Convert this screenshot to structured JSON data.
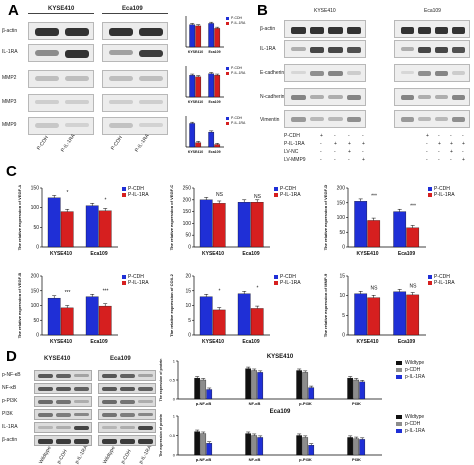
{
  "panels": {
    "A": {
      "label": "A",
      "cell_lines": [
        "KYSE410",
        "Eca109"
      ],
      "proteins": [
        "β-actin",
        "IL-1RA",
        "MMP2",
        "MMP3",
        "MMP9"
      ],
      "lanes": [
        "P-CDH",
        "P-IL-1RA"
      ],
      "band_intensity": {
        "KYSE410": [
          [
            0.9,
            0.9
          ],
          [
            0.45,
            0.9
          ],
          [
            0.2,
            0.2
          ],
          [
            0.12,
            0.12
          ],
          [
            0.15,
            0.1
          ]
        ],
        "Eca109": [
          [
            0.9,
            0.9
          ],
          [
            0.35,
            0.85
          ],
          [
            0.2,
            0.2
          ],
          [
            0.12,
            0.12
          ],
          [
            0.18,
            0.1
          ]
        ]
      }
    },
    "B": {
      "label": "B",
      "cell_lines": [
        "KYSE410",
        "Eca109"
      ],
      "proteins": [
        "β-actin",
        "IL-1RA",
        "E-cadherin",
        "N-cadherin",
        "Vimentin"
      ],
      "conditions": [
        "P-CDH",
        "P-IL-1RA",
        "LV-NC",
        "LV-MMP9"
      ],
      "lane_marks": [
        [
          "+",
          "-",
          "-",
          "-"
        ],
        [
          "-",
          "+",
          "+",
          "+"
        ],
        [
          "-",
          "-",
          "+",
          "-"
        ],
        [
          "-",
          "-",
          "-",
          "+"
        ]
      ]
    },
    "C": {
      "label": "C",
      "legend": [
        "P-CDH",
        "P-IL-1RA"
      ],
      "colors": {
        "P-CDH": "#1f2fd6",
        "P-IL-1RA": "#d61f1f"
      }
    },
    "D": {
      "label": "D",
      "cell_lines": [
        "KYSE410",
        "Eca109"
      ],
      "proteins": [
        "p-NF-κB",
        "NF-κB",
        "p-PI3K",
        "PI3K",
        "IL-1RA",
        "β-actin"
      ],
      "lanes": [
        "Wildtype",
        "p-CDH",
        "p-IL-1RA"
      ],
      "legend": [
        "Wildtype",
        "p-CDH",
        "p-IL-1RA"
      ],
      "colors": {
        "Wildtype": "#111111",
        "p-CDH": "#8c8c8c",
        "p-IL-1RA": "#1f2fd6"
      }
    }
  },
  "chart_data": [
    {
      "type": "bar",
      "panel": "A-1",
      "title": "",
      "categories": [
        "KYSE410",
        "Eca109"
      ],
      "ylabel": "",
      "series": [
        {
          "name": "P-CDH",
          "values": [
            1.8,
            1.9
          ]
        },
        {
          "name": "P-IL-1RA",
          "values": [
            1.7,
            1.5
          ]
        }
      ],
      "ylim": [
        0,
        2.5
      ]
    },
    {
      "type": "bar",
      "panel": "A-2",
      "title": "",
      "categories": [
        "KYSE410",
        "Eca109"
      ],
      "ylabel": "",
      "series": [
        {
          "name": "P-CDH",
          "values": [
            1.4,
            1.5
          ]
        },
        {
          "name": "P-IL-1RA",
          "values": [
            1.3,
            1.4
          ]
        }
      ],
      "ylim": [
        0,
        2.0
      ]
    },
    {
      "type": "bar",
      "panel": "A-3",
      "title": "",
      "categories": [
        "KYSE410",
        "Eca109"
      ],
      "ylabel": "",
      "series": [
        {
          "name": "P-CDH",
          "values": [
            1.9,
            1.2
          ]
        },
        {
          "name": "P-IL-1RA",
          "values": [
            0.35,
            0.2
          ]
        }
      ],
      "ylim": [
        0,
        2.5
      ]
    },
    {
      "type": "bar",
      "panel": "C-1",
      "title": "",
      "categories": [
        "KYSE410",
        "Eca109"
      ],
      "ylabel": "The relative expression of VEGF-A",
      "series": [
        {
          "name": "P-CDH",
          "values": [
            125,
            105
          ]
        },
        {
          "name": "P-IL-1RA",
          "values": [
            90,
            92
          ]
        }
      ],
      "significance": [
        "*",
        "*"
      ],
      "ylim": [
        0,
        150
      ],
      "yticks": [
        0,
        50,
        100,
        150
      ]
    },
    {
      "type": "bar",
      "panel": "C-2",
      "title": "",
      "categories": [
        "KYSE410",
        "Eca109"
      ],
      "ylabel": "The relative expression of VEGF-C",
      "series": [
        {
          "name": "P-CDH",
          "values": [
            200,
            190
          ]
        },
        {
          "name": "P-IL-1RA",
          "values": [
            185,
            190
          ]
        }
      ],
      "significance": [
        "NS",
        "NS"
      ],
      "ylim": [
        0,
        250
      ],
      "yticks": [
        0,
        50,
        100,
        150,
        200,
        250
      ]
    },
    {
      "type": "bar",
      "panel": "C-3",
      "title": "",
      "categories": [
        "KYSE410",
        "Eca109"
      ],
      "ylabel": "The relative expression of VEGF-D",
      "series": [
        {
          "name": "P-CDH",
          "values": [
            155,
            120
          ]
        },
        {
          "name": "P-IL-1RA",
          "values": [
            90,
            65
          ]
        }
      ],
      "significance": [
        "***",
        "***"
      ],
      "ylim": [
        0,
        200
      ],
      "yticks": [
        0,
        50,
        100,
        150,
        200
      ]
    },
    {
      "type": "bar",
      "panel": "C-4",
      "title": "",
      "categories": [
        "KYSE410",
        "Eca109"
      ],
      "ylabel": "The relative expression of VEGF-B",
      "series": [
        {
          "name": "P-CDH",
          "values": [
            125,
            130
          ]
        },
        {
          "name": "P-IL-1RA",
          "values": [
            92,
            98
          ]
        }
      ],
      "significance": [
        "***",
        "***"
      ],
      "ylim": [
        0,
        200
      ],
      "yticks": [
        0,
        50,
        100,
        150,
        200
      ]
    },
    {
      "type": "bar",
      "panel": "C-5",
      "title": "",
      "categories": [
        "KYSE410",
        "Eca109"
      ],
      "ylabel": "The relative expression of COX-2",
      "series": [
        {
          "name": "P-CDH",
          "values": [
            13,
            14
          ]
        },
        {
          "name": "P-IL-1RA",
          "values": [
            8.5,
            9
          ]
        }
      ],
      "significance": [
        "*",
        "*"
      ],
      "ylim": [
        0,
        20
      ],
      "yticks": [
        0,
        5,
        10,
        15,
        20
      ]
    },
    {
      "type": "bar",
      "panel": "C-6",
      "title": "",
      "categories": [
        "KYSE410",
        "Eca109"
      ],
      "ylabel": "The relative expression of MMP-9",
      "series": [
        {
          "name": "P-CDH",
          "values": [
            10.5,
            11
          ]
        },
        {
          "name": "P-IL-1RA",
          "values": [
            9.5,
            10.2
          ]
        }
      ],
      "significance": [
        "NS",
        "NS"
      ],
      "ylim": [
        0,
        15
      ],
      "yticks": [
        0,
        5,
        10,
        15
      ]
    },
    {
      "type": "bar",
      "panel": "D-1",
      "title": "KYSE410",
      "categories": [
        "p-NF-κB",
        "NF-κB",
        "p-PI3K",
        "PI3K"
      ],
      "ylabel": "The expression of protein",
      "series": [
        {
          "name": "Wildtype",
          "values": [
            0.55,
            0.8,
            0.75,
            0.55
          ]
        },
        {
          "name": "p-CDH",
          "values": [
            0.5,
            0.75,
            0.7,
            0.5
          ]
        },
        {
          "name": "p-IL-1RA",
          "values": [
            0.25,
            0.7,
            0.3,
            0.45
          ]
        }
      ],
      "ylim": [
        0,
        1.0
      ],
      "yticks": [
        0.0,
        0.5,
        1.0
      ]
    },
    {
      "type": "bar",
      "panel": "D-2",
      "title": "Eca109",
      "categories": [
        "p-NF-κB",
        "NF-κB",
        "p-PI3K",
        "PI3K"
      ],
      "ylabel": "The expression of protein",
      "series": [
        {
          "name": "Wildtype",
          "values": [
            0.6,
            0.55,
            0.5,
            0.45
          ]
        },
        {
          "name": "p-CDH",
          "values": [
            0.55,
            0.5,
            0.45,
            0.42
          ]
        },
        {
          "name": "p-IL-1RA",
          "values": [
            0.3,
            0.45,
            0.25,
            0.4
          ]
        }
      ],
      "ylim": [
        0,
        1.0
      ],
      "yticks": [
        0.0,
        0.5,
        1.0
      ]
    }
  ]
}
